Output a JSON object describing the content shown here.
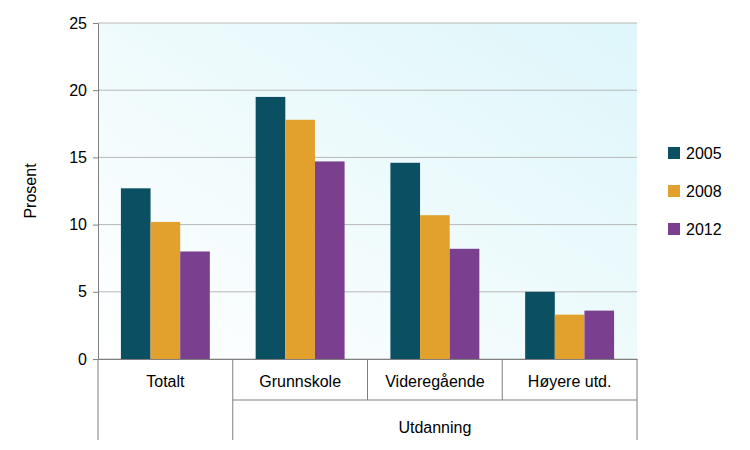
{
  "chart_data": {
    "type": "bar",
    "ylabel": "Prosent",
    "xlabel": "Utdanning",
    "categories": [
      "Totalt",
      "Grunnskole",
      "Videregående",
      "Høyere utd."
    ],
    "series": [
      {
        "name": "2005",
        "color": "#0b4f63",
        "values": [
          12.7,
          19.5,
          14.6,
          5.0
        ]
      },
      {
        "name": "2008",
        "color": "#e2a12d",
        "values": [
          10.2,
          17.8,
          10.7,
          3.3
        ]
      },
      {
        "name": "2012",
        "color": "#7b3f8f",
        "values": [
          8.0,
          14.7,
          8.2,
          3.6
        ]
      }
    ],
    "ylim": [
      0,
      25
    ],
    "yticks": [
      0,
      5,
      10,
      15,
      20,
      25
    ],
    "grid": true,
    "legend": "right"
  }
}
